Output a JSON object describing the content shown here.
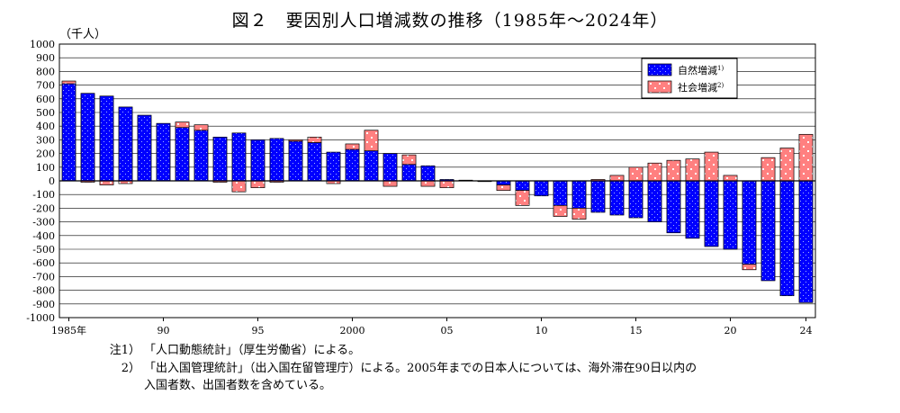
{
  "chart_data": {
    "type": "bar",
    "stacked": true,
    "title": "図２　要因別人口増減数の推移（1985年～2024年）",
    "unit_label": "（千人）",
    "ylim": [
      -1000,
      1000
    ],
    "yticks": [
      1000,
      900,
      800,
      700,
      600,
      500,
      400,
      300,
      200,
      100,
      0,
      -100,
      -200,
      -300,
      -400,
      -500,
      -600,
      -700,
      -800,
      -900,
      -1000
    ],
    "x": [
      1985,
      1986,
      1987,
      1988,
      1989,
      1990,
      1991,
      1992,
      1993,
      1994,
      1995,
      1996,
      1997,
      1998,
      1999,
      2000,
      2001,
      2002,
      2003,
      2004,
      2005,
      2006,
      2007,
      2008,
      2009,
      2010,
      2011,
      2012,
      2013,
      2014,
      2015,
      2016,
      2017,
      2018,
      2019,
      2020,
      2021,
      2022,
      2023,
      2024
    ],
    "xtick_labels": [
      {
        "x": 1985,
        "label": "1985年"
      },
      {
        "x": 1990,
        "label": "90"
      },
      {
        "x": 1995,
        "label": "95"
      },
      {
        "x": 2000,
        "label": "2000"
      },
      {
        "x": 2005,
        "label": "05"
      },
      {
        "x": 2010,
        "label": "10"
      },
      {
        "x": 2015,
        "label": "15"
      },
      {
        "x": 2020,
        "label": "20"
      },
      {
        "x": 2024,
        "label": "24"
      }
    ],
    "legend_position": "top-right",
    "series": [
      {
        "name": "自然増減",
        "sup": "1)",
        "color": "#0000ff",
        "values": [
          710,
          640,
          620,
          540,
          480,
          420,
          390,
          370,
          320,
          350,
          300,
          310,
          290,
          280,
          210,
          230,
          220,
          200,
          120,
          110,
          10,
          5,
          0,
          -30,
          -70,
          -110,
          -180,
          -200,
          -230,
          -250,
          -270,
          -300,
          -380,
          -420,
          -480,
          -500,
          -610,
          -730,
          -840,
          -890
        ]
      },
      {
        "name": "社会増減",
        "sup": "2)",
        "color": "#ff8080",
        "values": [
          20,
          -10,
          -30,
          -20,
          0,
          0,
          40,
          40,
          -10,
          -80,
          -50,
          -10,
          10,
          40,
          -20,
          40,
          150,
          -40,
          70,
          -40,
          -50,
          0,
          -5,
          -40,
          -110,
          0,
          -80,
          -80,
          10,
          40,
          100,
          130,
          150,
          160,
          210,
          40,
          -40,
          170,
          240,
          340
        ]
      }
    ]
  },
  "notes": [
    {
      "label": "注1）",
      "text": "「人口動態統計」（厚生労働省）による。"
    },
    {
      "label": "2）",
      "text": "「出入国管理統計」（出入国在留管理庁）による。2005年までの日本人については、海外滞在90日以内の"
    },
    {
      "label": "",
      "text": "入国者数、出国者数を含めている。"
    }
  ]
}
